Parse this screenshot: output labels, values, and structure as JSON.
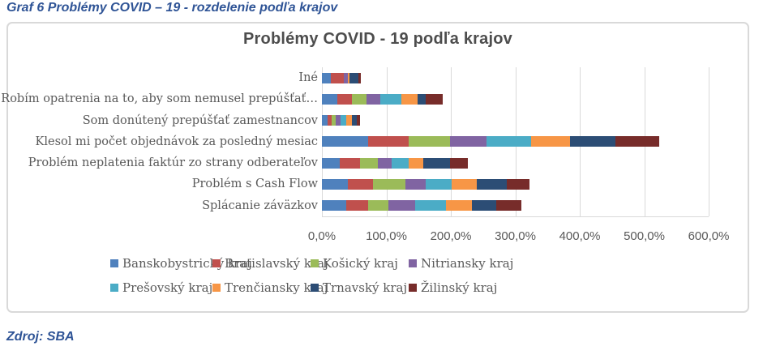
{
  "page": {
    "caption": "Graf 6 Problémy COVID – 19 - rozdelenie podľa krajov",
    "source": "Zdroj: SBA"
  },
  "chart_data": {
    "type": "bar",
    "orientation": "horizontal",
    "stacked": true,
    "title": "Problémy COVID - 19 podľa krajov",
    "xlabel": "",
    "ylabel": "",
    "xlim": [
      0,
      600
    ],
    "x_ticks": [
      "0,0%",
      "100,0%",
      "200,0%",
      "300,0%",
      "400,0%",
      "500,0%",
      "600,0%"
    ],
    "grid": "vertical",
    "legend_position": "bottom",
    "categories": [
      "Iné",
      "Robím opatrenia na to, aby som nemusel prepúšťať…",
      "Som donútený prepúšťať zamestnancov",
      "Klesol mi počet objednávok za posledný mesiac",
      "Problém neplatenia faktúr zo strany odberateľov",
      "Problém s Cash Flow",
      "Splácanie záväzkov"
    ],
    "series": [
      {
        "name": "Banskobystrický kraj",
        "color": "#4F81BD",
        "values": [
          13.4,
          23.5,
          8.4,
          71.3,
          27.3,
          39.8,
          37.7
        ]
      },
      {
        "name": "Bratislavský kraj",
        "color": "#C0504D",
        "values": [
          20.1,
          22.6,
          6.7,
          62.9,
          31.4,
          39.8,
          33.5
        ]
      },
      {
        "name": "Košický kraj",
        "color": "#9BBB59",
        "values": [
          0,
          23.1,
          6.7,
          64.6,
          28.5,
          50.3,
          31.4
        ]
      },
      {
        "name": "Nitriansky kraj",
        "color": "#8064A2",
        "values": [
          6.3,
          21.0,
          7.5,
          57.0,
          21.0,
          31.4,
          41.9
        ]
      },
      {
        "name": "Prešovský kraj",
        "color": "#4BACC6",
        "values": [
          0,
          33.5,
          8.4,
          68.3,
          26.0,
          39.8,
          48.2
        ]
      },
      {
        "name": "Trenčiansky kraj",
        "color": "#F79646",
        "values": [
          2.9,
          24.3,
          8.4,
          60.8,
          23.1,
          39.8,
          39.8
        ]
      },
      {
        "name": "Trnavský kraj",
        "color": "#2C4D75",
        "values": [
          13.8,
          12.6,
          7.9,
          70.0,
          41.1,
          46.1,
          37.7
        ]
      },
      {
        "name": "Žilinský kraj",
        "color": "#772C2A",
        "values": [
          3.4,
          27.3,
          5.4,
          68.3,
          28.1,
          35.6,
          39.0
        ]
      }
    ],
    "colors": {
      "gridline": "#D9D9D9",
      "frame_border": "#D9D9D9",
      "axis_text": "#595959",
      "title_text": "#4D4D4D",
      "caption_text": "#2F5496"
    }
  }
}
